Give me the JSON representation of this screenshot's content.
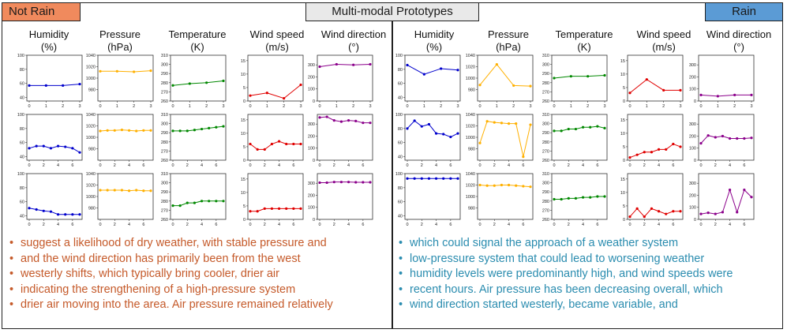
{
  "labels": {
    "title": "Multi-modal Prototypes",
    "not_rain": "Not Rain",
    "rain": "Rain"
  },
  "column_headers": [
    {
      "line1": "Humidity",
      "line2": "(%)"
    },
    {
      "line1": "Pressure",
      "line2": "(hPa)"
    },
    {
      "line1": "Temperature",
      "line2": "(K)"
    },
    {
      "line1": "Wind speed",
      "line2": "(m/s)"
    },
    {
      "line1": "Wind direction",
      "line2": "(°)"
    }
  ],
  "colors": {
    "humidity": "#0000cc",
    "pressure": "#ffb000",
    "temperature": "#008800",
    "wind_speed": "#e00000",
    "wind_direction": "#8b008b"
  },
  "not_rain_text": [
    "suggest a likelihood of dry weather, with stable pressure and",
    "and the wind direction has primarily been from the west",
    "westerly shifts,  which typically bring cooler, drier air",
    "indicating the strengthening of a high-pressure system",
    "drier air moving into the area. Air pressure remained relatively"
  ],
  "rain_text": [
    "which could signal the approach of a weather system",
    "low-pressure system that could lead to worsening weather",
    "humidity levels were predominantly high, and wind speeds were",
    "recent hours. Air pressure has been decreasing overall, which",
    "wind direction started westerly, became variable, and"
  ],
  "chart_data": [
    {
      "group": "not_rain",
      "row": 0,
      "var": "humidity",
      "type": "line",
      "x": [
        0,
        1,
        2,
        3
      ],
      "values": [
        57,
        57,
        57,
        59
      ],
      "ylim": [
        35,
        100
      ],
      "yticks": [
        40,
        60,
        80,
        100
      ],
      "xticks": [
        0,
        1,
        2,
        3
      ]
    },
    {
      "group": "not_rain",
      "row": 0,
      "var": "pressure",
      "type": "line",
      "x": [
        0,
        1,
        2,
        3
      ],
      "values": [
        1012,
        1012,
        1011,
        1013
      ],
      "ylim": [
        960,
        1040
      ],
      "yticks": [
        980,
        1000,
        1020,
        1040
      ],
      "xticks": [
        0,
        1,
        2,
        3
      ]
    },
    {
      "group": "not_rain",
      "row": 0,
      "var": "temperature",
      "type": "line",
      "x": [
        0,
        1,
        2,
        3
      ],
      "values": [
        277,
        279,
        280,
        282
      ],
      "ylim": [
        260,
        310
      ],
      "yticks": [
        260,
        270,
        280,
        290,
        300,
        310
      ],
      "xticks": [
        0,
        1,
        2,
        3
      ]
    },
    {
      "group": "not_rain",
      "row": 0,
      "var": "wind_speed",
      "type": "line",
      "x": [
        0,
        1,
        2,
        3
      ],
      "values": [
        2,
        3,
        1,
        6
      ],
      "ylim": [
        0,
        17
      ],
      "yticks": [
        0,
        5,
        10,
        15
      ],
      "xticks": [
        0,
        1,
        2,
        3
      ]
    },
    {
      "group": "not_rain",
      "row": 0,
      "var": "wind_direction",
      "type": "line",
      "x": [
        0,
        1,
        2,
        3
      ],
      "values": [
        285,
        305,
        300,
        305
      ],
      "ylim": [
        0,
        380
      ],
      "yticks": [
        0,
        100,
        200,
        300
      ],
      "xticks": [
        0,
        1,
        2,
        3
      ]
    },
    {
      "group": "not_rain",
      "row": 1,
      "var": "humidity",
      "type": "line",
      "x": [
        0,
        1,
        2,
        3,
        4,
        5,
        6,
        7
      ],
      "values": [
        52,
        55,
        55,
        52,
        55,
        54,
        52,
        46
      ],
      "ylim": [
        35,
        100
      ],
      "yticks": [
        40,
        60,
        80,
        100
      ],
      "xticks": [
        0,
        2,
        4,
        6
      ]
    },
    {
      "group": "not_rain",
      "row": 1,
      "var": "pressure",
      "type": "line",
      "x": [
        0,
        1,
        2,
        3,
        4,
        5,
        6,
        7
      ],
      "values": [
        1011,
        1012,
        1012,
        1013,
        1012,
        1011,
        1012,
        1012
      ],
      "ylim": [
        960,
        1040
      ],
      "yticks": [
        980,
        1000,
        1020,
        1040
      ],
      "xticks": [
        0,
        2,
        4,
        6
      ]
    },
    {
      "group": "not_rain",
      "row": 1,
      "var": "temperature",
      "type": "line",
      "x": [
        0,
        1,
        2,
        3,
        4,
        5,
        6,
        7
      ],
      "values": [
        292,
        292,
        292,
        293,
        294,
        295,
        296,
        297
      ],
      "ylim": [
        260,
        310
      ],
      "yticks": [
        260,
        270,
        280,
        290,
        300,
        310
      ],
      "xticks": [
        0,
        2,
        4,
        6
      ]
    },
    {
      "group": "not_rain",
      "row": 1,
      "var": "wind_speed",
      "type": "line",
      "x": [
        0,
        1,
        2,
        3,
        4,
        5,
        6,
        7
      ],
      "values": [
        6,
        4,
        4,
        6,
        7,
        6,
        6,
        6
      ],
      "ylim": [
        0,
        17
      ],
      "yticks": [
        0,
        5,
        10,
        15
      ],
      "xticks": [
        0,
        2,
        4,
        6
      ]
    },
    {
      "group": "not_rain",
      "row": 1,
      "var": "wind_direction",
      "type": "line",
      "x": [
        0,
        1,
        2,
        3,
        4,
        5,
        6,
        7
      ],
      "values": [
        355,
        360,
        330,
        320,
        330,
        325,
        310,
        310
      ],
      "ylim": [
        0,
        380
      ],
      "yticks": [
        0,
        100,
        200,
        300
      ],
      "xticks": [
        0,
        2,
        4,
        6
      ]
    },
    {
      "group": "not_rain",
      "row": 2,
      "var": "humidity",
      "type": "line",
      "x": [
        0,
        1,
        2,
        3,
        4,
        5,
        6,
        7
      ],
      "values": [
        51,
        49,
        47,
        46,
        42,
        42,
        42,
        42
      ],
      "ylim": [
        35,
        100
      ],
      "yticks": [
        40,
        60,
        80,
        100
      ],
      "xticks": [
        0,
        2,
        4,
        6
      ]
    },
    {
      "group": "not_rain",
      "row": 2,
      "var": "pressure",
      "type": "line",
      "x": [
        0,
        1,
        2,
        3,
        4,
        5,
        6,
        7
      ],
      "values": [
        1011,
        1011,
        1011,
        1011,
        1010,
        1011,
        1010,
        1010
      ],
      "ylim": [
        960,
        1040
      ],
      "yticks": [
        980,
        1000,
        1020,
        1040
      ],
      "xticks": [
        0,
        2,
        4,
        6
      ]
    },
    {
      "group": "not_rain",
      "row": 2,
      "var": "temperature",
      "type": "line",
      "x": [
        0,
        1,
        2,
        3,
        4,
        5,
        6,
        7
      ],
      "values": [
        275,
        275,
        278,
        278,
        280,
        280,
        280,
        280
      ],
      "ylim": [
        260,
        310
      ],
      "yticks": [
        260,
        270,
        280,
        290,
        300,
        310
      ],
      "xticks": [
        0,
        2,
        4,
        6
      ]
    },
    {
      "group": "not_rain",
      "row": 2,
      "var": "wind_speed",
      "type": "line",
      "x": [
        0,
        1,
        2,
        3,
        4,
        5,
        6,
        7
      ],
      "values": [
        3,
        3,
        4,
        4,
        4,
        4,
        4,
        4
      ],
      "ylim": [
        0,
        17
      ],
      "yticks": [
        0,
        5,
        10,
        15
      ],
      "xticks": [
        0,
        2,
        4,
        6
      ]
    },
    {
      "group": "not_rain",
      "row": 2,
      "var": "wind_direction",
      "type": "line",
      "x": [
        0,
        1,
        2,
        3,
        4,
        5,
        6,
        7
      ],
      "values": [
        305,
        305,
        310,
        310,
        310,
        308,
        308,
        308
      ],
      "ylim": [
        0,
        380
      ],
      "yticks": [
        0,
        100,
        200,
        300
      ],
      "xticks": [
        0,
        2,
        4,
        6
      ]
    },
    {
      "group": "rain",
      "row": 0,
      "var": "humidity",
      "type": "line",
      "x": [
        0,
        1,
        2,
        3
      ],
      "values": [
        86,
        73,
        81,
        79
      ],
      "ylim": [
        35,
        100
      ],
      "yticks": [
        40,
        60,
        80,
        100
      ],
      "xticks": [
        0,
        1,
        2,
        3
      ]
    },
    {
      "group": "rain",
      "row": 0,
      "var": "pressure",
      "type": "line",
      "x": [
        0,
        1,
        2,
        3
      ],
      "values": [
        988,
        1024,
        987,
        986
      ],
      "ylim": [
        960,
        1040
      ],
      "yticks": [
        980,
        1000,
        1020,
        1040
      ],
      "xticks": [
        0,
        1,
        2,
        3
      ]
    },
    {
      "group": "rain",
      "row": 0,
      "var": "temperature",
      "type": "line",
      "x": [
        0,
        1,
        2,
        3
      ],
      "values": [
        285,
        287,
        287,
        288
      ],
      "ylim": [
        260,
        310
      ],
      "yticks": [
        260,
        270,
        280,
        290,
        300,
        310
      ],
      "xticks": [
        0,
        1,
        2,
        3
      ]
    },
    {
      "group": "rain",
      "row": 0,
      "var": "wind_speed",
      "type": "line",
      "x": [
        0,
        1,
        2,
        3
      ],
      "values": [
        3,
        8,
        4,
        4
      ],
      "ylim": [
        0,
        17
      ],
      "yticks": [
        0,
        5,
        10,
        15
      ],
      "xticks": [
        0,
        1,
        2,
        3
      ]
    },
    {
      "group": "rain",
      "row": 0,
      "var": "wind_direction",
      "type": "line",
      "x": [
        0,
        1,
        2,
        3
      ],
      "values": [
        50,
        40,
        50,
        50
      ],
      "ylim": [
        0,
        380
      ],
      "yticks": [
        0,
        100,
        200,
        300
      ],
      "xticks": [
        0,
        1,
        2,
        3
      ]
    },
    {
      "group": "rain",
      "row": 1,
      "var": "humidity",
      "type": "line",
      "x": [
        0,
        1,
        2,
        3,
        4,
        5,
        6,
        7
      ],
      "values": [
        80,
        91,
        83,
        86,
        73,
        72,
        68,
        73
      ],
      "ylim": [
        35,
        100
      ],
      "yticks": [
        40,
        60,
        80,
        100
      ],
      "xticks": [
        0,
        2,
        4,
        6
      ]
    },
    {
      "group": "rain",
      "row": 1,
      "var": "pressure",
      "type": "line",
      "x": [
        0,
        1,
        2,
        3,
        4,
        5,
        6,
        7
      ],
      "values": [
        990,
        1028,
        1026,
        1025,
        1024,
        1024,
        966,
        1022
      ],
      "ylim": [
        960,
        1040
      ],
      "yticks": [
        980,
        1000,
        1020,
        1040
      ],
      "xticks": [
        0,
        2,
        4,
        6
      ]
    },
    {
      "group": "rain",
      "row": 1,
      "var": "temperature",
      "type": "line",
      "x": [
        0,
        1,
        2,
        3,
        4,
        5,
        6,
        7
      ],
      "values": [
        292,
        292,
        294,
        294,
        296,
        296,
        297,
        295
      ],
      "ylim": [
        260,
        310
      ],
      "yticks": [
        260,
        270,
        280,
        290,
        300,
        310
      ],
      "xticks": [
        0,
        2,
        4,
        6
      ]
    },
    {
      "group": "rain",
      "row": 1,
      "var": "wind_speed",
      "type": "line",
      "x": [
        0,
        1,
        2,
        3,
        4,
        5,
        6,
        7
      ],
      "values": [
        1,
        2,
        3,
        3,
        4,
        4,
        6,
        5
      ],
      "ylim": [
        0,
        17
      ],
      "yticks": [
        0,
        5,
        10,
        15
      ],
      "xticks": [
        0,
        2,
        4,
        6
      ]
    },
    {
      "group": "rain",
      "row": 1,
      "var": "wind_direction",
      "type": "line",
      "x": [
        0,
        1,
        2,
        3,
        4,
        5,
        6,
        7
      ],
      "values": [
        140,
        205,
        190,
        200,
        180,
        180,
        180,
        185
      ],
      "ylim": [
        0,
        380
      ],
      "yticks": [
        0,
        100,
        200,
        300
      ],
      "xticks": [
        0,
        2,
        4,
        6
      ]
    },
    {
      "group": "rain",
      "row": 2,
      "var": "humidity",
      "type": "line",
      "x": [
        0,
        1,
        2,
        3,
        4,
        5,
        6,
        7
      ],
      "values": [
        93,
        93,
        93,
        93,
        93,
        93,
        93,
        93
      ],
      "ylim": [
        35,
        100
      ],
      "yticks": [
        40,
        60,
        80,
        100
      ],
      "xticks": [
        0,
        2,
        4,
        6
      ]
    },
    {
      "group": "rain",
      "row": 2,
      "var": "pressure",
      "type": "line",
      "x": [
        0,
        1,
        2,
        3,
        4,
        5,
        6,
        7
      ],
      "values": [
        1020,
        1019,
        1019,
        1020,
        1020,
        1019,
        1018,
        1017
      ],
      "ylim": [
        960,
        1040
      ],
      "yticks": [
        980,
        1000,
        1020,
        1040
      ],
      "xticks": [
        0,
        2,
        4,
        6
      ]
    },
    {
      "group": "rain",
      "row": 2,
      "var": "temperature",
      "type": "line",
      "x": [
        0,
        1,
        2,
        3,
        4,
        5,
        6,
        7
      ],
      "values": [
        282,
        282,
        283,
        283,
        284,
        284,
        285,
        285
      ],
      "ylim": [
        260,
        310
      ],
      "yticks": [
        260,
        270,
        280,
        290,
        300,
        310
      ],
      "xticks": [
        0,
        2,
        4,
        6
      ]
    },
    {
      "group": "rain",
      "row": 2,
      "var": "wind_speed",
      "type": "line",
      "x": [
        0,
        1,
        2,
        3,
        4,
        5,
        6,
        7
      ],
      "values": [
        1,
        4,
        1,
        4,
        3,
        2,
        3,
        3
      ],
      "ylim": [
        0,
        17
      ],
      "yticks": [
        0,
        5,
        10,
        15
      ],
      "xticks": [
        0,
        2,
        4,
        6
      ]
    },
    {
      "group": "rain",
      "row": 2,
      "var": "wind_direction",
      "type": "line",
      "x": [
        0,
        1,
        2,
        3,
        4,
        5,
        6,
        7
      ],
      "values": [
        45,
        55,
        45,
        60,
        245,
        60,
        245,
        185
      ],
      "ylim": [
        0,
        380
      ],
      "yticks": [
        0,
        100,
        200,
        300
      ],
      "xticks": [
        0,
        2,
        4,
        6
      ]
    }
  ]
}
